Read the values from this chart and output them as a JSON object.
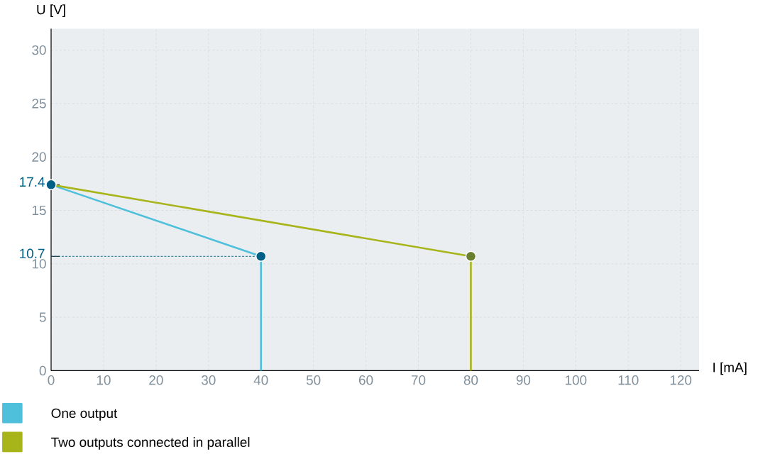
{
  "chart_data": {
    "type": "line",
    "xlabel": "I [mA]",
    "ylabel": "U [V]",
    "xlim": [
      0,
      123.5
    ],
    "ylim": [
      0,
      32
    ],
    "xticks": [
      0,
      10,
      20,
      30,
      40,
      50,
      60,
      70,
      80,
      90,
      100,
      110,
      120
    ],
    "yticks": [
      0,
      5,
      10,
      {
        "value": 10.7,
        "label": "10.7"
      },
      15,
      {
        "value": 17.4,
        "label": "17.4"
      },
      20,
      25,
      30
    ],
    "grid": true,
    "legend": "bottom",
    "series": [
      {
        "name": "One output",
        "color": "#4fc0db",
        "x": [
          0,
          40,
          40
        ],
        "values": [
          17.4,
          10.7,
          0
        ]
      },
      {
        "name": "Two outputs connected in parallel",
        "color": "#a8b51a",
        "x": [
          0,
          80,
          80
        ],
        "values": [
          17.4,
          10.7,
          0
        ]
      },
      {
        "type": "line",
        "line_style": "dashed",
        "color": "#005f87",
        "x": [
          0,
          40
        ],
        "values": [
          10.7,
          10.7
        ]
      },
      {
        "type": "scatter",
        "marker": "circle",
        "color": "#005f87",
        "x": [
          0,
          40
        ],
        "values": [
          17.4,
          10.7
        ]
      },
      {
        "type": "scatter",
        "marker": "circle",
        "color": "#6b7f30",
        "x": [
          80
        ],
        "values": [
          10.7
        ]
      }
    ]
  }
}
